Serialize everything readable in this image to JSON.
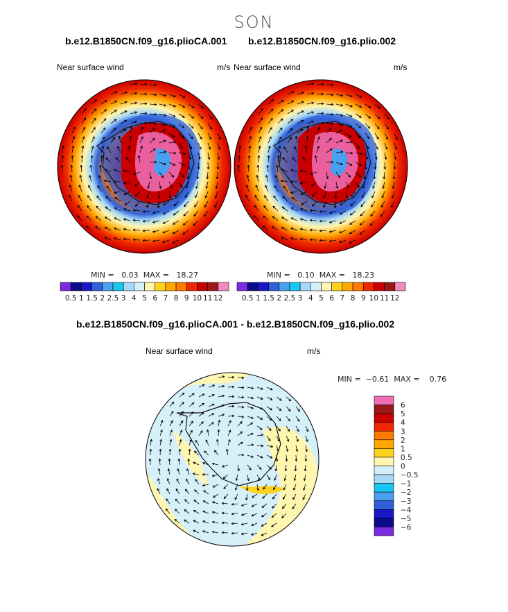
{
  "page": {
    "season": "SON"
  },
  "panels": [
    {
      "run": "b.e12.B1850CN.f09_g16.plioCA.001",
      "variable": "Near surface wind",
      "units": "m/s",
      "min_label": "MIN =",
      "min_value": "0.03",
      "max_label": "MAX =",
      "max_value": "18.27"
    },
    {
      "run": "b.e12.B1850CN.f09_g16.plio.002",
      "variable": "Near surface wind",
      "units": "m/s",
      "min_label": "MIN =",
      "min_value": "0.10",
      "max_label": "MAX =",
      "max_value": "18.23"
    }
  ],
  "abs_colorbar": {
    "colors": [
      "#7b2ce0",
      "#0a0a8c",
      "#1818c8",
      "#3060d8",
      "#4aa0f0",
      "#16c8f0",
      "#a6d8f8",
      "#d6f0fa",
      "#fff6b0",
      "#ffd21e",
      "#ffa800",
      "#ff7a00",
      "#f02800",
      "#c80000",
      "#9a1818",
      "#f08cc0"
    ],
    "labels": [
      "0.5",
      "1",
      "1.5",
      "2",
      "2.5",
      "3",
      "4",
      "5",
      "6",
      "7",
      "8",
      "9",
      "10",
      "11",
      "12"
    ]
  },
  "difference": {
    "title": "b.e12.B1850CN.f09_g16.plioCA.001 - b.e12.B1850CN.f09_g16.plio.002",
    "variable": "Near surface wind",
    "units": "m/s",
    "min_label": "MIN =",
    "min_value": "−0.61",
    "max_label": "MAX =",
    "max_value": "0.76"
  },
  "diff_colorbar": {
    "colors": [
      "#f070b8",
      "#9a1818",
      "#c80000",
      "#f02800",
      "#ff7a00",
      "#ffa800",
      "#ffd21e",
      "#fff6b0",
      "#d6f0fa",
      "#a6d8f8",
      "#16c8f0",
      "#4aa0f0",
      "#3060d8",
      "#1818c8",
      "#0a0a8c",
      "#7b2ce0"
    ],
    "labels": [
      "6",
      "5",
      "4",
      "3",
      "2",
      "1",
      "0.5",
      "0",
      "−0.5",
      "−1",
      "−2",
      "−3",
      "−4",
      "−5",
      "−6"
    ]
  }
}
